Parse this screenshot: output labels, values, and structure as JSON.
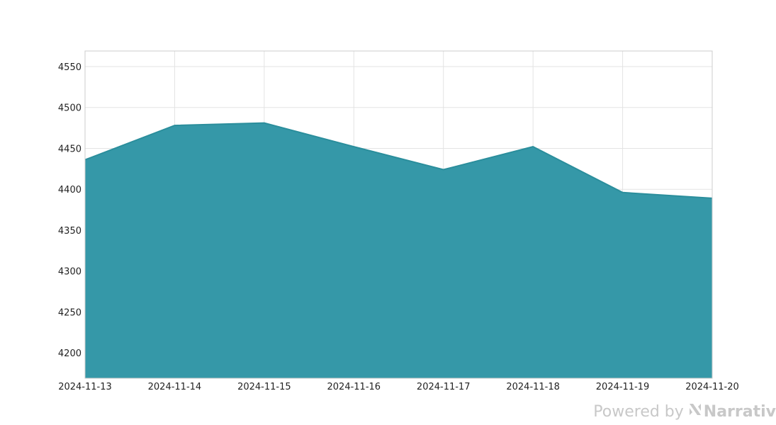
{
  "chart_data": {
    "type": "area",
    "x": [
      "2024-11-13",
      "2024-11-14",
      "2024-11-15",
      "2024-11-16",
      "2024-11-17",
      "2024-11-18",
      "2024-11-19",
      "2024-11-20"
    ],
    "values": [
      4436,
      4478,
      4481,
      4452,
      4424,
      4452,
      4396,
      4389
    ],
    "ylim": [
      4169,
      4569
    ],
    "yticks": [
      4200,
      4250,
      4300,
      4350,
      4400,
      4450,
      4500,
      4550
    ],
    "grid": true,
    "colors": {
      "fill": "#3598a8",
      "line": "#2b8e9c"
    }
  },
  "watermark": {
    "prefix": "Powered by",
    "brand": "Narrativ",
    "icon": "narrativ-logo-icon"
  }
}
